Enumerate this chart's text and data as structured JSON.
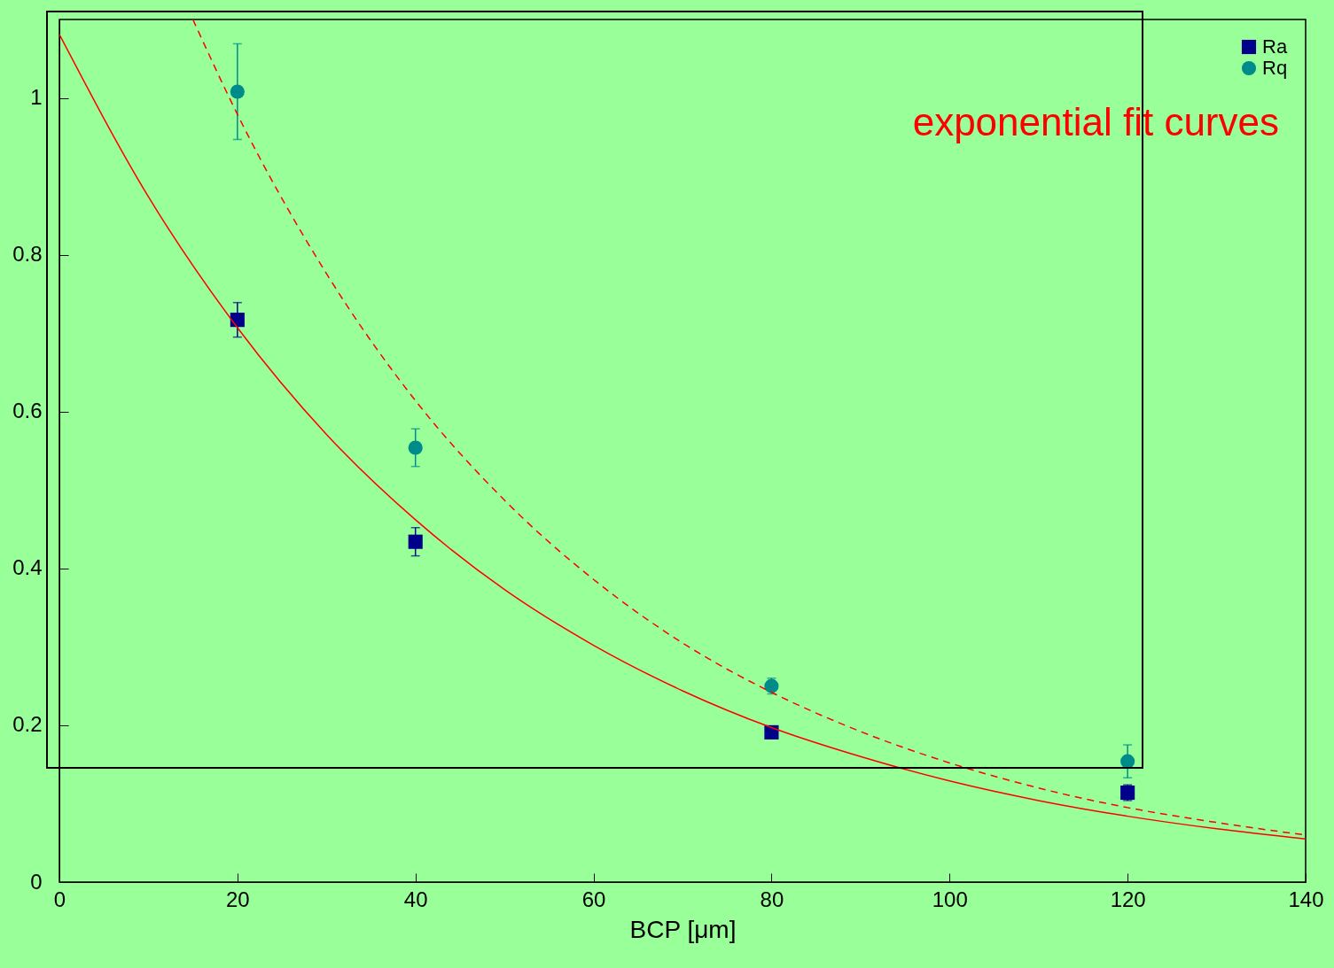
{
  "chart_data": {
    "type": "scatter",
    "xlabel": "BCP [μm]",
    "xlim": [
      0,
      140
    ],
    "xticks": [
      0,
      20,
      40,
      60,
      80,
      100,
      120,
      140
    ],
    "ylim": [
      0,
      1.1
    ],
    "yticks": [
      0,
      0.2,
      0.4,
      0.6,
      0.8,
      1
    ],
    "grid": false,
    "legend": "top right",
    "annotations": [
      "exponential fit curves"
    ],
    "series": [
      {
        "name": "Ra",
        "type": "scatter",
        "color": "#00008b",
        "marker": "square",
        "x": [
          20,
          40,
          80,
          120
        ],
        "values": [
          0.717,
          0.434,
          0.191,
          0.114
        ],
        "errors": [
          0.022,
          0.018,
          0.006,
          0.01
        ]
      },
      {
        "name": "Rq",
        "type": "scatter",
        "color": "#008b8b",
        "marker": "circle",
        "x": [
          20,
          40,
          80,
          120
        ],
        "values": [
          1.008,
          0.554,
          0.25,
          0.154
        ],
        "errors": [
          0.061,
          0.024,
          0.01,
          0.021
        ]
      },
      {
        "type": "line",
        "color": "#ff0000",
        "line_style": "solid",
        "x": [
          0,
          10,
          20,
          30,
          40,
          50,
          60,
          70,
          80,
          90,
          100,
          110,
          120,
          130,
          140
        ],
        "values": [
          1.081,
          0.874,
          0.707,
          0.571,
          0.462,
          0.373,
          0.302,
          0.244,
          0.197,
          0.16,
          0.129,
          0.104,
          0.084,
          0.068,
          0.055
        ]
      },
      {
        "type": "line",
        "color": "#ff0000",
        "line_style": "dashed",
        "x": [
          15,
          20,
          30,
          40,
          50,
          60,
          70,
          80,
          90,
          100,
          110,
          120,
          130,
          140
        ],
        "values": [
          1.1,
          0.979,
          0.776,
          0.614,
          0.487,
          0.386,
          0.305,
          0.242,
          0.192,
          0.152,
          0.12,
          0.095,
          0.076,
          0.06
        ]
      }
    ]
  }
}
